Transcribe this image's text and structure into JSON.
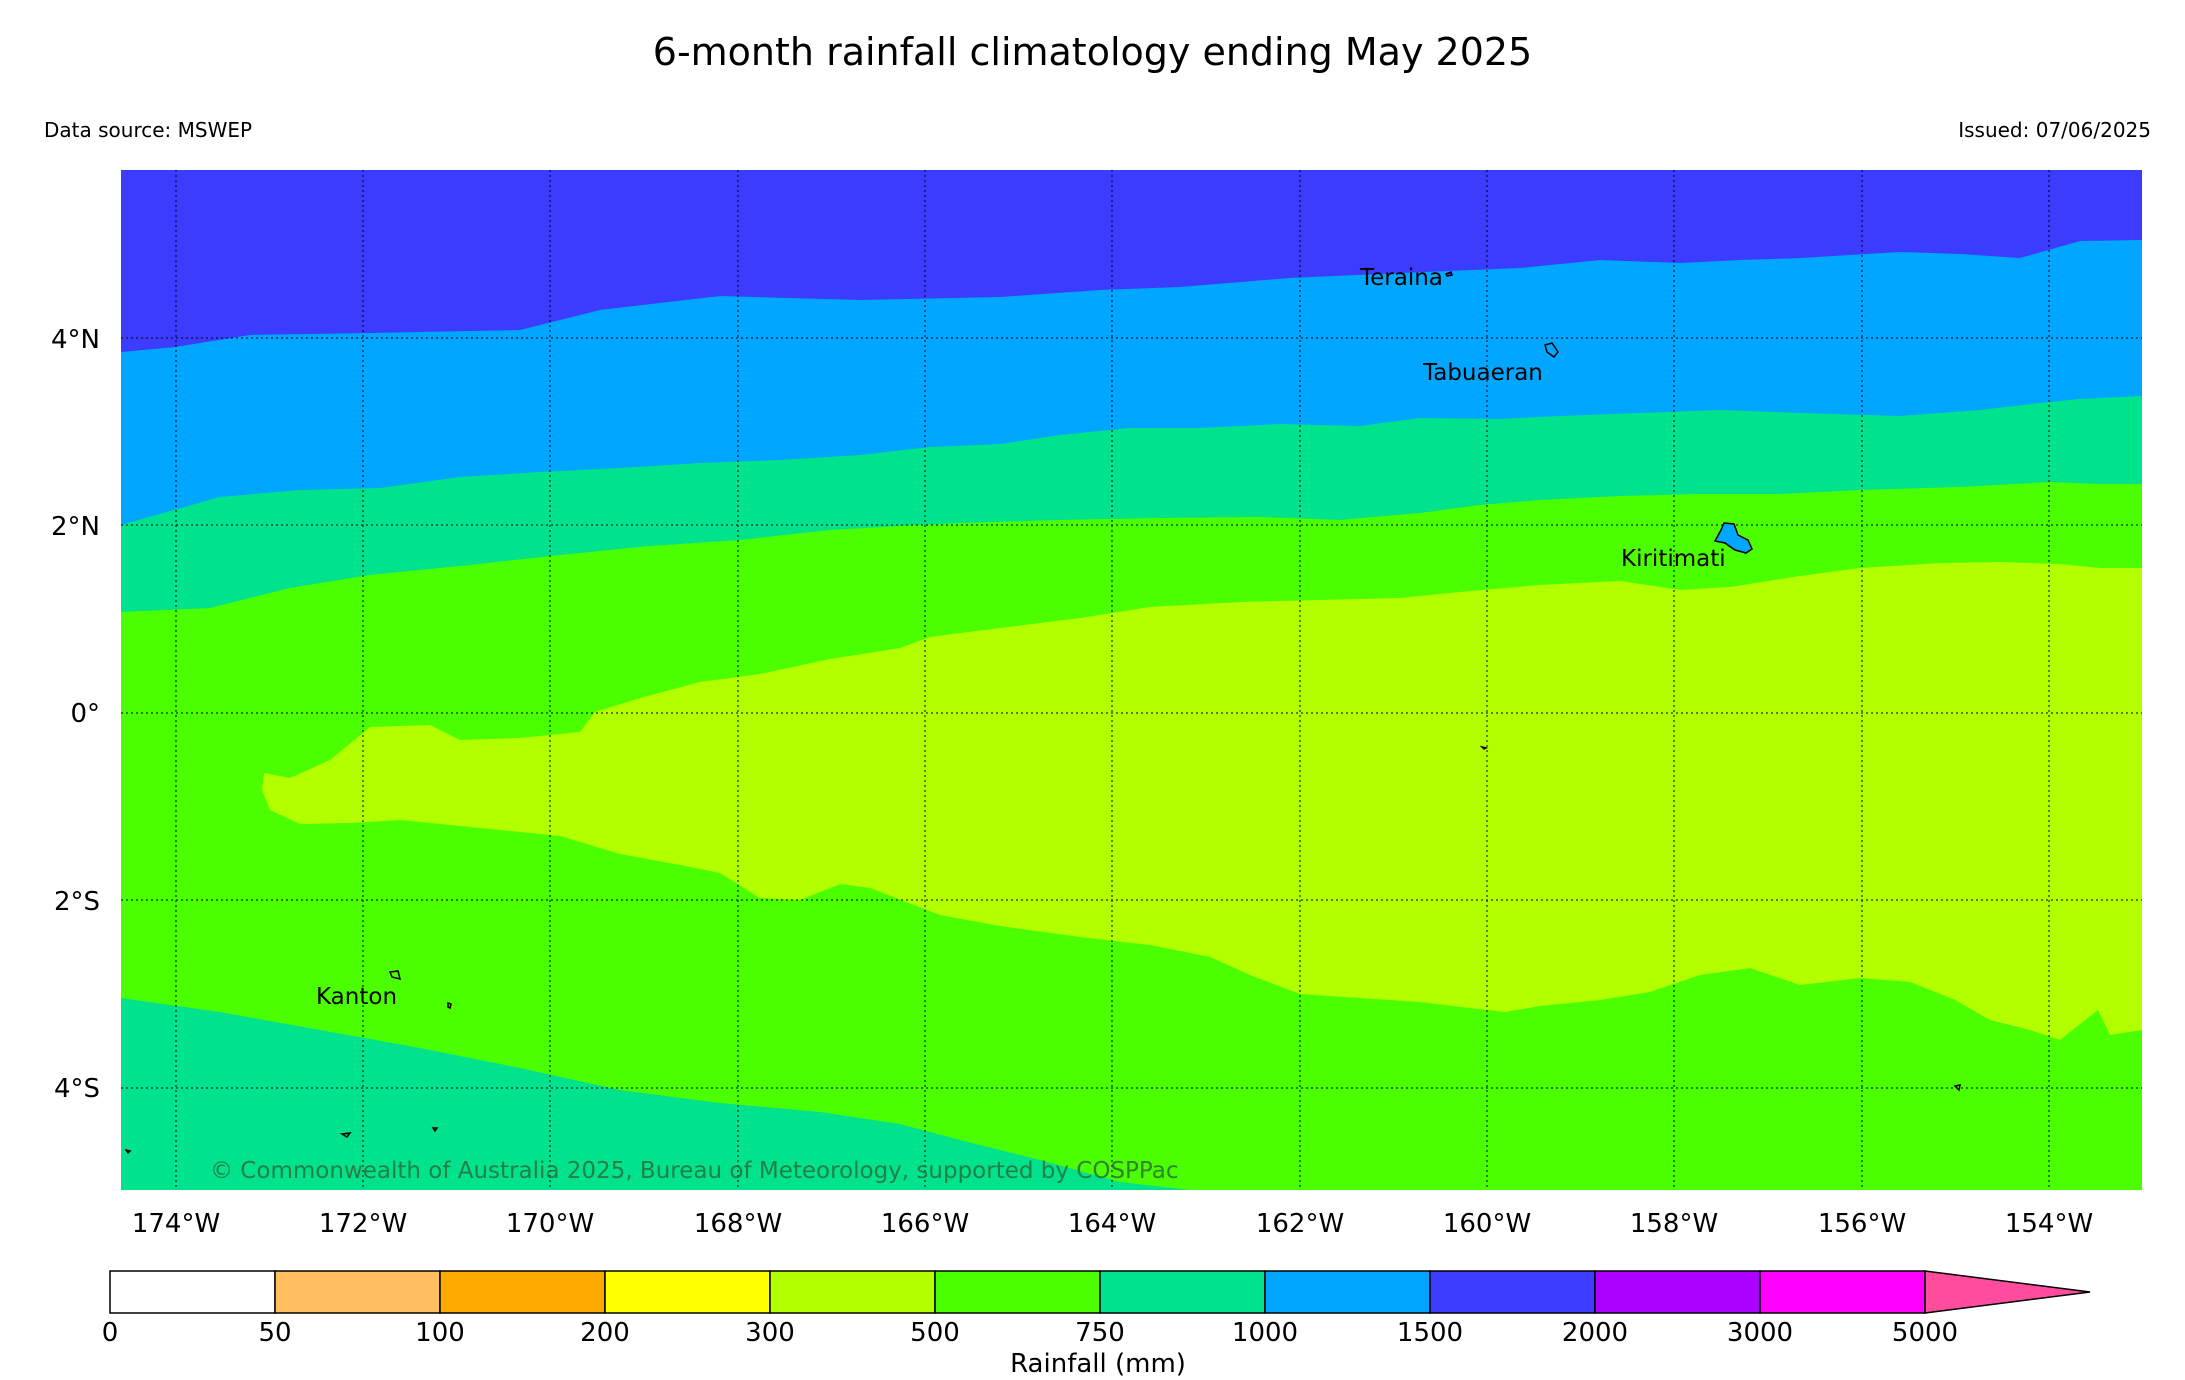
{
  "title": "6-month rainfall climatology ending May 2025",
  "data_source": "Data source: MSWEP",
  "issued": "Issued: 07/06/2025",
  "copyright": "© Commonwealth of Australia 2025, Bureau of Meteorology, supported by COSPPac",
  "x_ticks": [
    "174°W",
    "172°W",
    "170°W",
    "168°W",
    "166°W",
    "164°W",
    "162°W",
    "160°W",
    "158°W",
    "156°W",
    "154°W"
  ],
  "y_ticks": [
    "4°N",
    "2°N",
    "0°",
    "2°S",
    "4°S"
  ],
  "places": [
    {
      "name": "Teraina"
    },
    {
      "name": "Tabuaeran"
    },
    {
      "name": "Kiritimati"
    },
    {
      "name": "Kanton"
    }
  ],
  "colorbar": {
    "label": "Rainfall (mm)",
    "ticks": [
      "0",
      "50",
      "100",
      "200",
      "300",
      "500",
      "750",
      "1000",
      "1500",
      "2000",
      "3000",
      "5000"
    ],
    "colors": [
      "#ffffff",
      "#ffbf5f",
      "#ffaa00",
      "#ffff00",
      "#b2ff00",
      "#4cff00",
      "#00e38c",
      "#00a6ff",
      "#3c3cff",
      "#aa00ff",
      "#ff00ff",
      "#ff4c9e"
    ]
  },
  "zone_colors": {
    "r1500_2000": "#3c3cff",
    "r1000_1500": "#00a6ff",
    "r750_1000": "#00e38c",
    "r500_750": "#4cff00",
    "r300_500": "#b2ff00"
  }
}
